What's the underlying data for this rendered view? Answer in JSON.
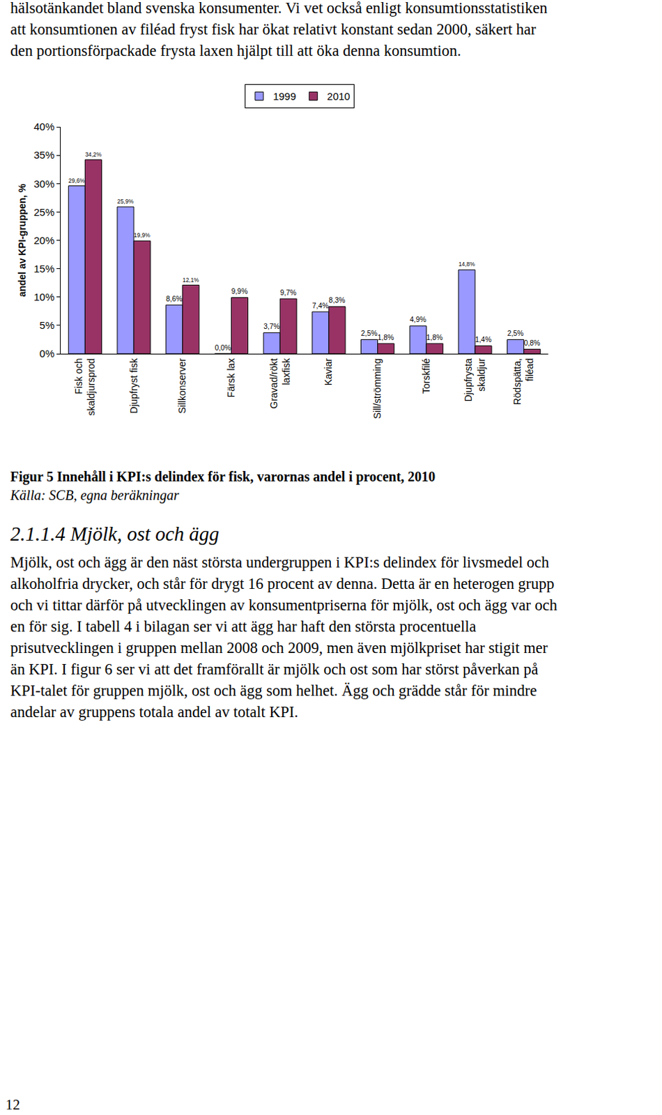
{
  "top_text": {
    "lines": [
      "hälsotänkandet bland svenska konsumenter. Vi vet också enligt konsumtionsstatistiken",
      "att konsumtionen av filéad fryst fisk har ökat relativt konstant sedan 2000, säkert har",
      "den portionsförpackade frysta laxen hjälpt till att öka denna konsumtion."
    ]
  },
  "chart_data": {
    "type": "bar",
    "y_label": "andel av KPI-gruppen, %",
    "categories": [
      "Fisk och\nskaldjursprod",
      "Djupfryst fisk",
      "Sillkonserver",
      "Färsk lax",
      "Gravad/rökt\nlaxfisk",
      "Kaviar",
      "Sill/strömming",
      "Torskfilé",
      "Djupfrysta\nskaldjur",
      "Rödspätta,\nfiléad"
    ],
    "series": [
      {
        "name": "1999",
        "color": "#9999ff",
        "values": [
          29.6,
          25.9,
          8.6,
          0.0,
          3.7,
          7.4,
          2.5,
          4.9,
          14.8,
          2.5
        ],
        "value_labels": [
          "29,6%",
          "25,9%",
          "8,6%",
          "0,0%",
          "3,7%",
          "7,4%",
          "2,5%",
          "4,9%",
          "14,8%",
          "2,5%"
        ]
      },
      {
        "name": "2010",
        "color": "#993366",
        "values": [
          34.2,
          19.9,
          12.1,
          9.9,
          9.7,
          8.3,
          1.8,
          1.8,
          1.4,
          0.8
        ],
        "value_labels": [
          "34,2%",
          "19,9%",
          "12,1%",
          "9,9%",
          "9,7%",
          "8,3%",
          "1,8%",
          "1,8%",
          "1,4%",
          "0,8%"
        ]
      }
    ],
    "ylim": [
      0,
      40
    ],
    "yticks": [
      {
        "value": 0,
        "label": "0%"
      },
      {
        "value": 5,
        "label": "5%"
      },
      {
        "value": 10,
        "label": "10%"
      },
      {
        "value": 15,
        "label": "15%"
      },
      {
        "value": 20,
        "label": "20%"
      },
      {
        "value": 25,
        "label": "25%"
      },
      {
        "value": 30,
        "label": "30%"
      },
      {
        "value": 35,
        "label": "35%"
      },
      {
        "value": 40,
        "label": "40%"
      }
    ],
    "grid": false,
    "legend": "top",
    "data_labels": true
  },
  "caption": {
    "figure": "Figur 5 Innehåll i KPI:s delindex för fisk, varornas andel i procent, 2010",
    "source": "Källa: SCB, egna beräkningar"
  },
  "heading": "2.1.1.4 Mjölk, ost och ägg",
  "paragraph": {
    "lines": [
      "Mjölk, ost och ägg är den näst största undergruppen i KPI:s delindex för livsmedel och",
      "alkoholfria drycker, och står för drygt 16 procent av denna. Detta är en heterogen grupp",
      "och vi tittar därför på utvecklingen av konsumentpriserna för mjölk, ost och ägg var och",
      "en för sig. I tabell 4 i bilagan ser vi att ägg har haft den största procentuella",
      "prisutvecklingen i gruppen mellan 2008 och 2009, men även mjölkpriset har stigit mer",
      "än KPI. I figur 6 ser vi att det framförallt är mjölk och ost som har störst påverkan på",
      "KPI-talet för gruppen mjölk, ost och ägg som helhet. Ägg och grädde står för mindre",
      "andelar av gruppens totala andel av totalt KPI."
    ]
  },
  "page_number": 12
}
